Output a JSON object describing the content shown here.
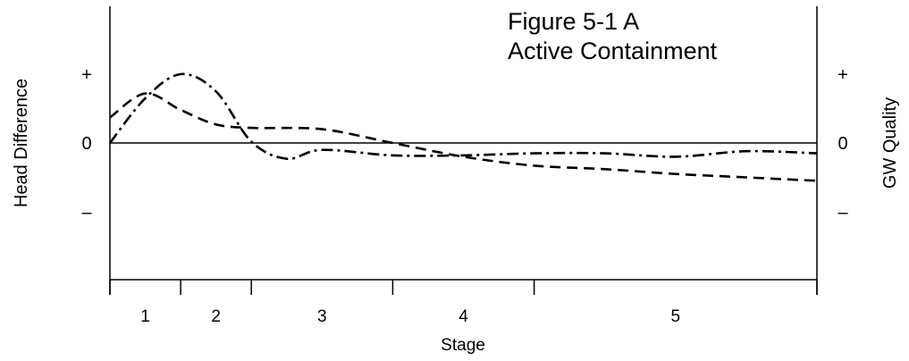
{
  "chart_data": {
    "type": "line",
    "title_lines": [
      "Figure 5-1 A",
      "Active Containment"
    ],
    "xlabel": "Stage",
    "ylabel_left": "Head Difference",
    "ylabel_right": "GW Quality",
    "left_ticks": [
      {
        "label": "+",
        "value": 1
      },
      {
        "label": "0",
        "value": 0
      },
      {
        "label": "–",
        "value": -1
      }
    ],
    "right_ticks": [
      {
        "label": "+",
        "value": 1
      },
      {
        "label": "0",
        "value": 0
      },
      {
        "label": "–",
        "value": -1
      }
    ],
    "ylim": [
      -2,
      2
    ],
    "xlim": [
      0,
      10
    ],
    "stage_boundaries": [
      0,
      1,
      2,
      4,
      6,
      10
    ],
    "stages": [
      {
        "label": "1",
        "center": 0.5
      },
      {
        "label": "2",
        "center": 1.5
      },
      {
        "label": "3",
        "center": 3
      },
      {
        "label": "4",
        "center": 5
      },
      {
        "label": "5",
        "center": 8
      }
    ],
    "zero_line": true,
    "series": [
      {
        "dash": "dashed",
        "points": [
          [
            0,
            0.37
          ],
          [
            0.5,
            0.72
          ],
          [
            1.0,
            0.48
          ],
          [
            1.5,
            0.27
          ],
          [
            2,
            0.22
          ],
          [
            3,
            0.2
          ],
          [
            4,
            0.0
          ],
          [
            5,
            -0.2
          ],
          [
            6,
            -0.33
          ],
          [
            7,
            -0.38
          ],
          [
            8,
            -0.45
          ],
          [
            9,
            -0.5
          ],
          [
            10,
            -0.55
          ]
        ]
      },
      {
        "dash": "dash-dot",
        "points": [
          [
            0,
            0.0
          ],
          [
            0.5,
            0.65
          ],
          [
            1.0,
            1.0
          ],
          [
            1.5,
            0.75
          ],
          [
            2,
            0.02
          ],
          [
            2.5,
            -0.23
          ],
          [
            3,
            -0.1
          ],
          [
            4,
            -0.18
          ],
          [
            5,
            -0.18
          ],
          [
            6,
            -0.15
          ],
          [
            7,
            -0.15
          ],
          [
            8,
            -0.2
          ],
          [
            9,
            -0.12
          ],
          [
            10,
            -0.15
          ]
        ]
      }
    ]
  }
}
